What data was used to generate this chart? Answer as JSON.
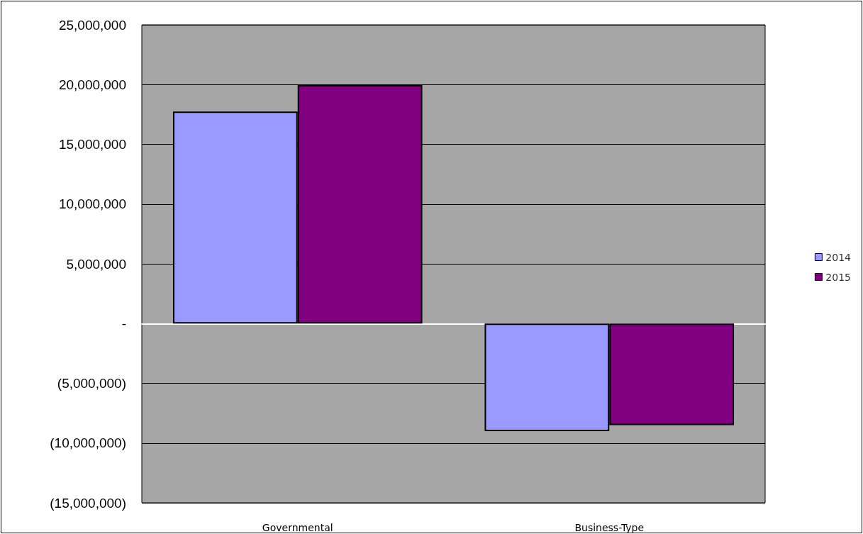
{
  "chart_data": {
    "type": "bar",
    "categories": [
      "Governmental",
      "Business-Type"
    ],
    "series": [
      {
        "name": "2014",
        "color": "#9999ff",
        "values": [
          17750000,
          -9000000
        ]
      },
      {
        "name": "2015",
        "color": "#800080",
        "values": [
          19950000,
          -8500000
        ]
      }
    ],
    "ylim": [
      -15000000,
      25000000
    ],
    "yticks": [
      {
        "value": -15000000,
        "label": "(15,000,000)"
      },
      {
        "value": -10000000,
        "label": "(10,000,000)"
      },
      {
        "value": -5000000,
        "label": "(5,000,000)"
      },
      {
        "value": 0,
        "label": "-"
      },
      {
        "value": 5000000,
        "label": "5,000,000"
      },
      {
        "value": 10000000,
        "label": "10,000,000"
      },
      {
        "value": 15000000,
        "label": "15,000,000"
      },
      {
        "value": 20000000,
        "label": "20,000,000"
      },
      {
        "value": 25000000,
        "label": "25,000,000"
      }
    ],
    "grid": "y",
    "legend": "right"
  }
}
